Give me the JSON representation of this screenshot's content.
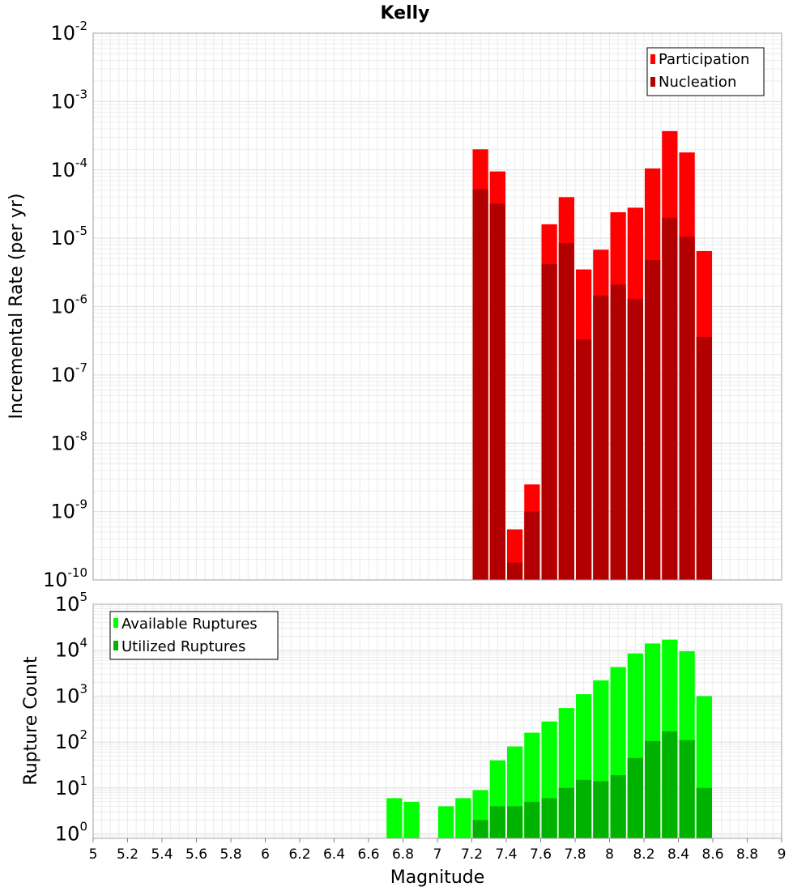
{
  "title": "Kelly",
  "xlabel": "Magnitude",
  "colors": {
    "participation": "#ff0000",
    "nucleation": "#b20000",
    "available": "#00ff00",
    "utilized": "#00b200"
  },
  "chart_data": [
    {
      "type": "bar",
      "title": "Kelly",
      "xlabel": "Magnitude",
      "ylabel": "Incremental Rate (per yr)",
      "xlim": [
        5,
        9
      ],
      "ylim": [
        1e-10,
        0.01
      ],
      "yscale": "log",
      "grid": true,
      "legend_position": "top-right",
      "x_ticks": [
        "5",
        "5.2",
        "5.4",
        "5.6",
        "5.8",
        "6",
        "6.2",
        "6.4",
        "6.6",
        "6.8",
        "7",
        "7.2",
        "7.4",
        "7.6",
        "7.8",
        "8",
        "8.2",
        "8.4",
        "8.6",
        "8.8",
        "9"
      ],
      "y_tick_exponents": [
        -10,
        -9,
        -8,
        -7,
        -6,
        -5,
        -4,
        -3,
        -2
      ],
      "bin_width": 0.1,
      "x": [
        7.25,
        7.35,
        7.45,
        7.55,
        7.65,
        7.75,
        7.85,
        7.95,
        8.05,
        8.15,
        8.25,
        8.35,
        8.45,
        8.55
      ],
      "series": [
        {
          "name": "Participation",
          "values": [
            0.0002,
            9.5e-05,
            5.5e-10,
            2.5e-09,
            1.6e-05,
            4e-05,
            3.5e-06,
            6.8e-06,
            2.4e-05,
            2.8e-05,
            0.000105,
            0.00037,
            0.00018,
            6.5e-06
          ]
        },
        {
          "name": "Nucleation",
          "values": [
            5.2e-05,
            3.2e-05,
            1.8e-10,
            1e-09,
            4.2e-06,
            8.5e-06,
            3.3e-07,
            1.45e-06,
            2.1e-06,
            1.3e-06,
            4.8e-06,
            2e-05,
            1.05e-05,
            3.6e-07
          ]
        }
      ]
    },
    {
      "type": "bar",
      "xlabel": "Magnitude",
      "ylabel": "Rupture Count",
      "xlim": [
        5,
        9
      ],
      "ylim": [
        0.8,
        100000.0
      ],
      "yscale": "log",
      "grid": true,
      "legend_position": "top-left",
      "x_ticks": [
        "5",
        "5.2",
        "5.4",
        "5.6",
        "5.8",
        "6",
        "6.2",
        "6.4",
        "6.6",
        "6.8",
        "7",
        "7.2",
        "7.4",
        "7.6",
        "7.8",
        "8",
        "8.2",
        "8.4",
        "8.6",
        "8.8",
        "9"
      ],
      "y_tick_exponents": [
        0,
        1,
        2,
        3,
        4,
        5
      ],
      "bin_width": 0.1,
      "x": [
        6.75,
        6.85,
        7.05,
        7.15,
        7.25,
        7.35,
        7.45,
        7.55,
        7.65,
        7.75,
        7.85,
        7.95,
        8.05,
        8.15,
        8.25,
        8.35,
        8.45,
        8.55
      ],
      "series": [
        {
          "name": "Available Ruptures",
          "values": [
            6,
            5,
            4,
            6,
            9,
            40,
            80,
            160,
            280,
            550,
            1100,
            2200,
            4300,
            8500,
            14000,
            17000,
            9500,
            1000
          ]
        },
        {
          "name": "Utilized Ruptures",
          "values": [
            null,
            null,
            null,
            null,
            2,
            4,
            4,
            5,
            6,
            10,
            15,
            14,
            19,
            45,
            105,
            170,
            110,
            10
          ]
        }
      ]
    }
  ]
}
